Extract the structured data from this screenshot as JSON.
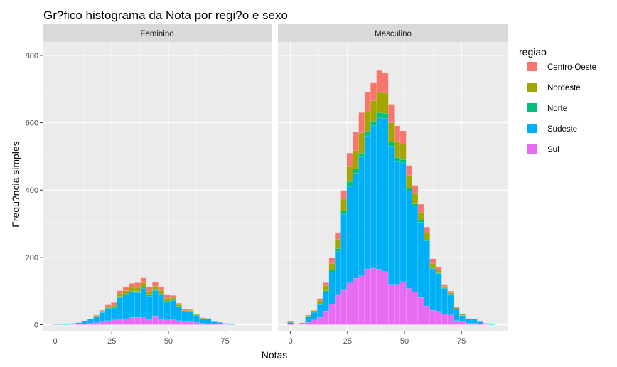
{
  "chart_data": {
    "type": "bar",
    "stacked": true,
    "title": "Gr?fico histograma da Nota por regi?o e sexo",
    "xlabel": "Notas",
    "ylabel": "Frequ?ncia simples",
    "x_ticks": [
      0,
      25,
      50,
      75
    ],
    "y_ticks": [
      0,
      200,
      400,
      600,
      800
    ],
    "xlim": [
      -5.5,
      95.5
    ],
    "ylim": [
      -20,
      840
    ],
    "bin_width": 2.6,
    "grid": true,
    "legend_title": "regiao",
    "legend_position": "right",
    "bin_centers": [
      0.0,
      2.6,
      5.2,
      7.8,
      10.4,
      13.0,
      15.6,
      18.2,
      20.8,
      23.4,
      26.0,
      28.6,
      31.2,
      33.8,
      36.4,
      39.0,
      41.6,
      44.2,
      46.8,
      49.4,
      52.0,
      54.6,
      57.2,
      59.8,
      62.4,
      65.0,
      67.6,
      70.2,
      72.8,
      75.4,
      78.0,
      80.6,
      83.2,
      85.8,
      88.4,
      91.0
    ],
    "series_names": [
      "Centro-Oeste",
      "Nordeste",
      "Norte",
      "Sudeste",
      "Sul"
    ],
    "colors": [
      "#F8766D",
      "#A3A500",
      "#00BF7D",
      "#00B0F6",
      "#E76BF3"
    ],
    "facets": [
      {
        "label": "Feminino",
        "series": [
          {
            "name": "Centro-Oeste",
            "values": [
              0,
              0,
              0,
              0,
              0,
              0,
              0,
              2,
              3,
              5,
              8,
              8,
              10,
              12,
              14,
              15,
              13,
              12,
              10,
              9,
              6,
              4,
              4,
              2,
              2,
              2,
              1,
              0,
              0,
              0,
              0,
              0,
              0,
              0,
              0,
              0
            ]
          },
          {
            "name": "Nordeste",
            "values": [
              0,
              0,
              0,
              0,
              0,
              0,
              1,
              2,
              3,
              4,
              6,
              9,
              10,
              11,
              12,
              13,
              12,
              11,
              10,
              9,
              7,
              5,
              4,
              3,
              2,
              1,
              1,
              0,
              0,
              0,
              0,
              0,
              0,
              0,
              0,
              0
            ]
          },
          {
            "name": "Norte",
            "values": [
              0,
              0,
              0,
              0,
              0,
              0,
              0,
              1,
              1,
              2,
              2,
              3,
              3,
              3,
              3,
              3,
              3,
              3,
              3,
              2,
              2,
              1,
              1,
              1,
              1,
              1,
              0,
              0,
              0,
              0,
              1,
              0,
              0,
              0,
              0,
              0
            ]
          },
          {
            "name": "Sudeste",
            "values": [
              1,
              1,
              1,
              3,
              5,
              8,
              13,
              18,
              28,
              36,
              36,
              63,
              70,
              75,
              74,
              84,
              70,
              75,
              71,
              54,
              56,
              42,
              28,
              30,
              21,
              13,
              14,
              7,
              6,
              3,
              2,
              0,
              0,
              0,
              0,
              0
            ]
          },
          {
            "name": "Sul",
            "values": [
              0,
              0,
              0,
              1,
              1,
              3,
              4,
              6,
              8,
              12,
              14,
              18,
              18,
              22,
              22,
              24,
              15,
              26,
              18,
              14,
              16,
              12,
              10,
              9,
              7,
              4,
              3,
              2,
              1,
              1,
              0,
              0,
              0,
              0,
              0,
              0
            ]
          }
        ]
      },
      {
        "label": "Masculino",
        "series": [
          {
            "name": "Centro-Oeste",
            "values": [
              1,
              0,
              0,
              1,
              1,
              6,
              9,
              16,
              20,
              26,
              40,
              55,
              60,
              58,
              55,
              65,
              60,
              55,
              45,
              40,
              30,
              25,
              24,
              18,
              14,
              9,
              4,
              5,
              2,
              1,
              1,
              0,
              0,
              0,
              0,
              0
            ]
          },
          {
            "name": "Nordeste",
            "values": [
              2,
              0,
              1,
              3,
              4,
              10,
              15,
              20,
              28,
              35,
              45,
              55,
              60,
              58,
              60,
              60,
              60,
              56,
              50,
              45,
              38,
              30,
              24,
              20,
              14,
              9,
              5,
              5,
              3,
              3,
              0,
              0,
              0,
              0,
              0,
              0
            ]
          },
          {
            "name": "Norte",
            "values": [
              0,
              0,
              0,
              0,
              1,
              2,
              3,
              5,
              8,
              10,
              14,
              12,
              12,
              14,
              14,
              15,
              15,
              13,
              12,
              10,
              8,
              6,
              5,
              3,
              2,
              2,
              2,
              1,
              1,
              1,
              0,
              0,
              0,
              0,
              0,
              0
            ]
          },
          {
            "name": "Sudeste",
            "values": [
              5,
              0,
              4,
              18,
              23,
              38,
              57,
              95,
              130,
              225,
              287,
              312,
              353,
              395,
              423,
              450,
              455,
              413,
              366,
              353,
              289,
              256,
              224,
              193,
              123,
              112,
              76,
              60,
              34,
              17,
              14,
              14,
              7,
              3,
              2,
              0
            ]
          },
          {
            "name": "Sul",
            "values": [
              2,
              0,
              1,
              7,
              14,
              22,
              41,
              62,
              88,
              103,
              124,
              138,
              145,
              166,
              168,
              165,
              158,
              118,
              118,
              128,
              108,
              97,
              81,
              56,
              43,
              40,
              31,
              29,
              12,
              10,
              4,
              4,
              2,
              1,
              0,
              0
            ]
          }
        ]
      }
    ]
  }
}
